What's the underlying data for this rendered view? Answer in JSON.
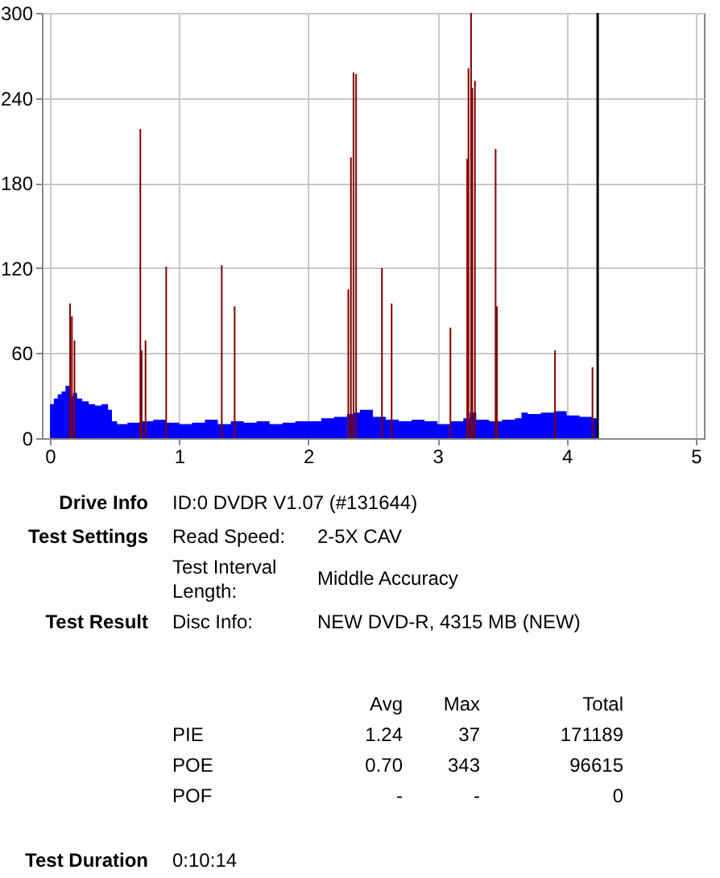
{
  "chart_data": {
    "type": "bar",
    "xlim": [
      0,
      5
    ],
    "xticks": [
      0,
      1,
      2,
      3,
      4,
      5
    ],
    "ylim": [
      0,
      300
    ],
    "yticks": [
      0,
      60,
      120,
      180,
      240,
      300
    ],
    "grid": true,
    "series": [
      {
        "type": "area",
        "color": "#0000ff",
        "x": [
          0,
          0.03,
          0.06,
          0.09,
          0.12,
          0.15,
          0.18,
          0.21,
          0.25,
          0.3,
          0.35,
          0.4,
          0.45,
          0.48,
          0.52,
          0.6,
          0.7,
          0.8,
          0.9,
          1.0,
          1.1,
          1.2,
          1.3,
          1.4,
          1.5,
          1.6,
          1.7,
          1.8,
          1.9,
          2.0,
          2.1,
          2.2,
          2.3,
          2.35,
          2.4,
          2.5,
          2.6,
          2.7,
          2.8,
          2.9,
          3.0,
          3.1,
          3.2,
          3.25,
          3.3,
          3.4,
          3.5,
          3.6,
          3.65,
          3.7,
          3.8,
          3.9,
          4.0,
          4.1,
          4.2,
          4.24
        ],
        "values": [
          24,
          28,
          31,
          33,
          37,
          30,
          32,
          28,
          26,
          24,
          23,
          24,
          20,
          12,
          10,
          11,
          12,
          13,
          11,
          10,
          11,
          13,
          10,
          12,
          11,
          12,
          10,
          11,
          12,
          12,
          14,
          15,
          17,
          18,
          20,
          15,
          13,
          12,
          13,
          12,
          10,
          12,
          14,
          18,
          13,
          12,
          13,
          14,
          18,
          17,
          18,
          19,
          16,
          15,
          14,
          14
        ]
      },
      {
        "color": "#800000",
        "x": [
          0.156,
          0.17,
          0.19,
          0.7,
          0.71,
          0.74,
          0.9,
          1.33,
          1.43,
          2.31,
          2.33,
          2.35,
          2.37,
          2.57,
          2.645,
          3.1,
          3.23,
          3.24,
          3.26,
          3.27,
          3.29,
          3.45,
          3.46,
          3.91,
          4.2
        ],
        "values": [
          95,
          86,
          69,
          218,
          62,
          69,
          121,
          122,
          93,
          105,
          198,
          258,
          257,
          120,
          95,
          78,
          197,
          261,
          300,
          247,
          252,
          204,
          93,
          62,
          50
        ]
      }
    ],
    "ref_lines": [
      {
        "axis": "x",
        "value": 4.24,
        "color": "#000000"
      }
    ],
    "annotations": [
      "Drive Info",
      "ID:0 DVDR V1.07 (#131644)",
      "Test Settings",
      "Read Speed:",
      "2-5X CAV",
      "Test Interval Length:",
      "Middle Accuracy",
      "Test Result",
      "Disc Info:",
      "NEW DVD-R, 4315 MB (NEW)",
      "Avg",
      "Max",
      "Total",
      "PIE",
      "1.24",
      "37",
      "171189",
      "POE",
      "0.70",
      "343",
      "96615",
      "POF",
      "-",
      "-",
      "0",
      "Test Duration",
      "0:10:14"
    ]
  }
}
